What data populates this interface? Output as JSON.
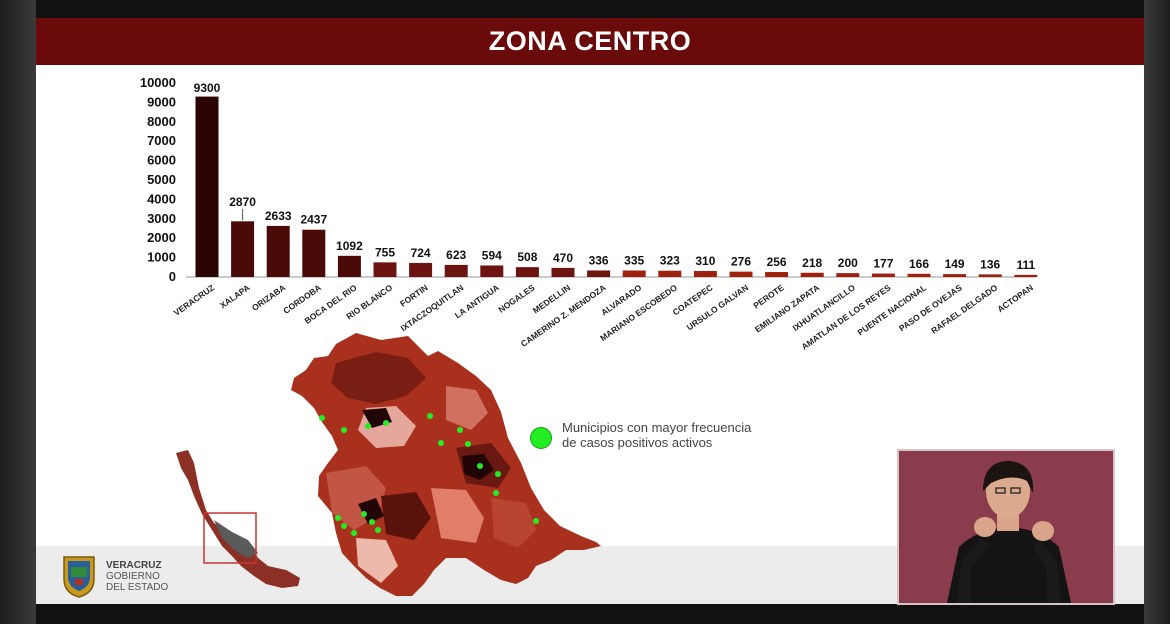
{
  "slide": {
    "title": "ZONA CENTRO",
    "legend_text_line1": "Municipios con mayor frecuencia",
    "legend_text_line2": "de casos positivos activos",
    "logo_line1": "VERACRUZ",
    "logo_line2": "GOBIERNO",
    "logo_line3": "DEL ESTADO"
  },
  "colors": {
    "title_bar": "#6b0a0a",
    "bar_dark": "#3a0606",
    "bar_light": "#9b1a0c",
    "marker": "#22ee22",
    "interpreter_bg": "#8a3b4c"
  },
  "chart_data": {
    "type": "bar",
    "categories": [
      "VERACRUZ",
      "XALAPA",
      "ORIZABA",
      "CORDOBA",
      "BOCA DEL RIO",
      "RIO BLANCO",
      "FORTIN",
      "IXTACZOQUITLAN",
      "LA ANTIGUA",
      "NOGALES",
      "MEDELLIN",
      "CAMERINO Z. MENDOZA",
      "ALVARADO",
      "MARIANO ESCOBEDO",
      "COATEPEC",
      "URSULO GALVAN",
      "PEROTE",
      "EMILIANO ZAPATA",
      "IXHUATLANCILLO",
      "AMATLAN DE LOS REYES",
      "PUENTE NACIONAL",
      "PASO DE OVEJAS",
      "RAFAEL DELGADO",
      "ACTOPAN"
    ],
    "values": [
      9300,
      2870,
      2633,
      2437,
      1092,
      755,
      724,
      623,
      594,
      508,
      470,
      336,
      335,
      323,
      310,
      276,
      256,
      218,
      200,
      177,
      166,
      149,
      136,
      111
    ],
    "value_labels": [
      "9300",
      "2870",
      "2633",
      "2437",
      "1092",
      "755",
      "724",
      "623",
      "594",
      "508",
      "470",
      "336",
      "335",
      "323",
      "310",
      "276",
      "256",
      "218",
      "200",
      "177",
      "166",
      "149",
      "136",
      "111"
    ],
    "yticks": [
      "0",
      "1000",
      "2000",
      "3000",
      "4000",
      "5000",
      "6000",
      "7000",
      "8000",
      "9000",
      "10000"
    ],
    "ylim": [
      0,
      10000
    ],
    "grid": false,
    "legend": "none",
    "title": "",
    "xlabel": "",
    "ylabel": ""
  }
}
